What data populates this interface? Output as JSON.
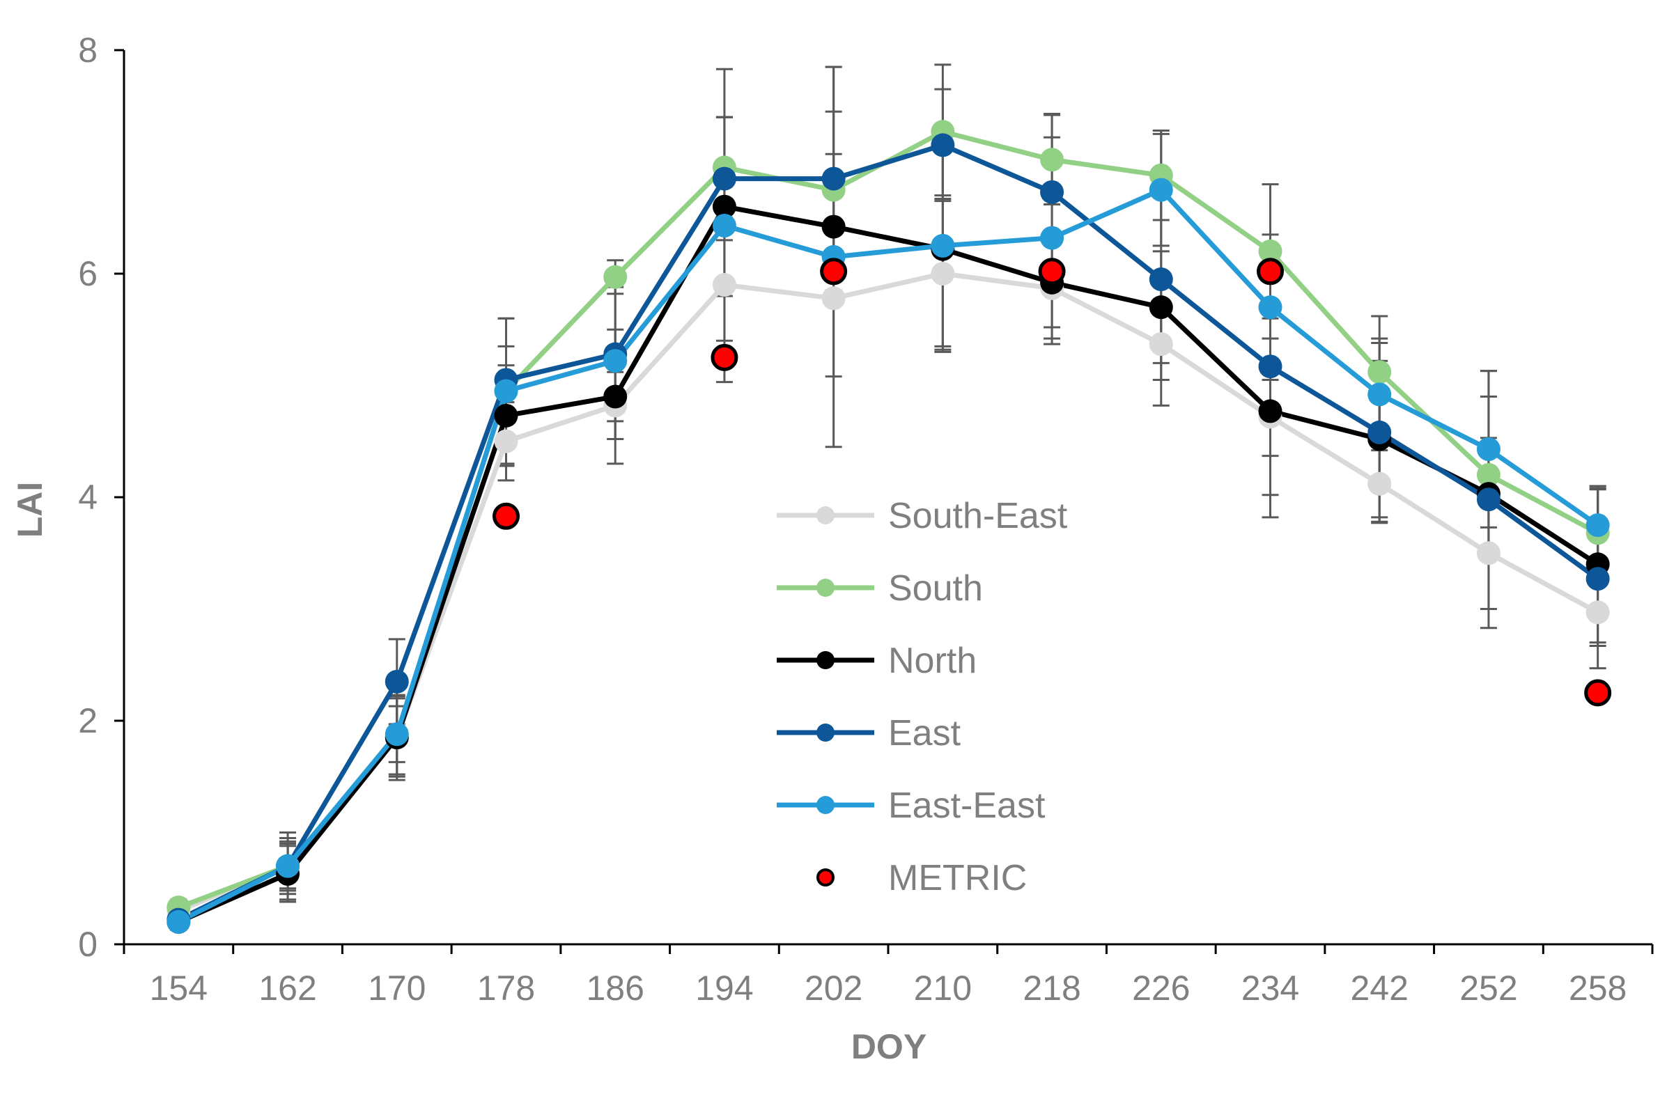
{
  "chart_data": {
    "type": "line",
    "title": "",
    "xlabel": "DOY",
    "ylabel": "LAI",
    "categories": [
      "154",
      "162",
      "170",
      "178",
      "186",
      "194",
      "202",
      "210",
      "218",
      "226",
      "234",
      "242",
      "252",
      "258"
    ],
    "ylim": [
      0,
      8
    ],
    "yticks": [
      0,
      2,
      4,
      6,
      8
    ],
    "grid": false,
    "legend_position": "center-right",
    "series": [
      {
        "name": "South-East",
        "color": "#d9d9d9",
        "values": [
          0.3,
          0.7,
          1.85,
          4.5,
          4.82,
          5.9,
          5.78,
          6.0,
          5.87,
          5.37,
          4.72,
          4.12,
          3.5,
          2.97
        ],
        "errors": [
          0.08,
          0.22,
          0.35,
          0.35,
          0.3,
          0.5,
          0.7,
          0.7,
          0.5,
          0.55,
          0.7,
          0.35,
          0.5,
          0.3
        ]
      },
      {
        "name": "South",
        "color": "#92d086",
        "values": [
          0.33,
          0.7,
          1.87,
          4.95,
          5.97,
          6.95,
          6.75,
          7.27,
          7.02,
          6.88,
          6.2,
          5.12,
          4.2,
          3.68
        ],
        "errors": [
          0.07,
          0.2,
          0.35,
          0.4,
          0.15,
          0.45,
          0.7,
          0.6,
          0.4,
          0.4,
          0.6,
          0.5,
          0.7,
          0.4
        ]
      },
      {
        "name": "North",
        "color": "#000000",
        "values": [
          0.2,
          0.63,
          1.85,
          4.73,
          4.9,
          6.6,
          6.42,
          6.22,
          5.92,
          5.7,
          4.77,
          4.52,
          4.03,
          3.4
        ],
        "errors": [
          0.07,
          0.25,
          0.38,
          0.45,
          0.6,
          0.8,
          0.65,
          0.9,
          0.4,
          0.5,
          0.95,
          0.7,
          0.5,
          0.7
        ]
      },
      {
        "name": "East",
        "color": "#0d5799",
        "values": [
          0.22,
          0.7,
          2.35,
          5.05,
          5.28,
          6.85,
          6.85,
          7.15,
          6.73,
          5.95,
          5.17,
          4.58,
          3.98,
          3.27
        ],
        "errors": [
          0.05,
          0.3,
          0.38,
          0.55,
          0.6,
          0.55,
          1.0,
          0.5,
          0.7,
          0.9,
          0.8,
          0.8,
          1.15,
          0.8
        ]
      },
      {
        "name": "East-East",
        "color": "#259cd8",
        "values": [
          0.2,
          0.7,
          1.88,
          4.95,
          5.22,
          6.43,
          6.15,
          6.25,
          6.32,
          6.75,
          5.7,
          4.92,
          4.43,
          3.75
        ],
        "errors": [
          0.05,
          0.25,
          0.25,
          0.65,
          0.7,
          1.4,
          1.7,
          0.9,
          0.9,
          0.5,
          0.65,
          0.5,
          0.7,
          0.35
        ]
      }
    ],
    "metric": {
      "name": "METRIC",
      "color": "#ff0000",
      "points": [
        {
          "x": "178",
          "y": 3.83
        },
        {
          "x": "194",
          "y": 5.25
        },
        {
          "x": "202",
          "y": 6.02
        },
        {
          "x": "218",
          "y": 6.02
        },
        {
          "x": "234",
          "y": 6.02
        },
        {
          "x": "258",
          "y": 2.25
        }
      ]
    },
    "legend": [
      "South-East",
      "South",
      "North",
      "East",
      "East-East",
      "METRIC"
    ]
  }
}
